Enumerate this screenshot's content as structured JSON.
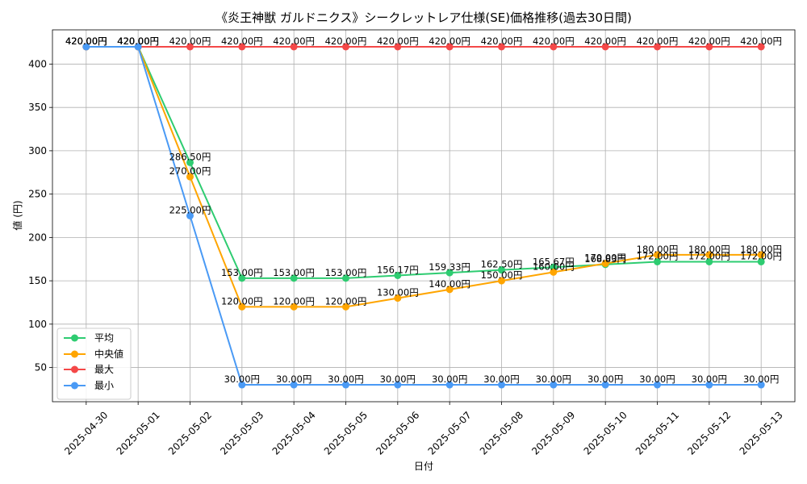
{
  "chart_data": {
    "type": "line",
    "title": "《炎王神獣 ガルドニクス》シークレットレア仕様(SE)価格推移(過去30日間)",
    "xlabel": "日付",
    "ylabel": "値 (円)",
    "x": [
      "2025-04-30",
      "2025-05-01",
      "2025-05-02",
      "2025-05-03",
      "2025-05-04",
      "2025-05-05",
      "2025-05-06",
      "2025-05-07",
      "2025-05-08",
      "2025-05-09",
      "2025-05-10",
      "2025-05-11",
      "2025-05-12",
      "2025-05-13"
    ],
    "ylim": [
      10.5,
      439.5
    ],
    "yticks": [
      50,
      100,
      150,
      200,
      250,
      300,
      350,
      400
    ],
    "grid": true,
    "legend_position": "lower-left",
    "series": [
      {
        "name": "平均",
        "color": "#2ecc71",
        "values": [
          420,
          420,
          286.5,
          153,
          153,
          153,
          156.17,
          159.33,
          162.5,
          165.67,
          168.83,
          172,
          172,
          172
        ],
        "labels": [
          "420.00円",
          "420.00円",
          "286.50円",
          "153.00円",
          "153.00円",
          "153.00円",
          "156.17円",
          "159.33円",
          "162.50円",
          "165.67円",
          "168.83円",
          "172.00円",
          "172.00円",
          "172.00円"
        ]
      },
      {
        "name": "中央値",
        "color": "#ffa500",
        "values": [
          420,
          420,
          270,
          120,
          120,
          120,
          130,
          140,
          150,
          160,
          170,
          180,
          180,
          180
        ],
        "labels": [
          "420.00円",
          "420.00円",
          "270.00円",
          "120.00円",
          "120.00円",
          "120.00円",
          "130.00円",
          "140.00円",
          "150.00円",
          "160.00円",
          "170.00円",
          "180.00円",
          "180.00円",
          "180.00円"
        ]
      },
      {
        "name": "最大",
        "color": "#f44848",
        "values": [
          420,
          420,
          420,
          420,
          420,
          420,
          420,
          420,
          420,
          420,
          420,
          420,
          420,
          420
        ],
        "labels": [
          "420.00円",
          "420.00円",
          "420.00円",
          "420.00円",
          "420.00円",
          "420.00円",
          "420.00円",
          "420.00円",
          "420.00円",
          "420.00円",
          "420.00円",
          "420.00円",
          "420.00円",
          "420.00円"
        ]
      },
      {
        "name": "最小",
        "color": "#4a9af5",
        "values": [
          420,
          420,
          225,
          30,
          30,
          30,
          30,
          30,
          30,
          30,
          30,
          30,
          30,
          30
        ],
        "labels": [
          "420.00円",
          "420.00円",
          "225.00円",
          "30.00円",
          "30.00円",
          "30.00円",
          "30.00円",
          "30.00円",
          "30.00円",
          "30.00円",
          "30.00円",
          "30.00円",
          "30.00円",
          "30.00円"
        ]
      }
    ]
  }
}
